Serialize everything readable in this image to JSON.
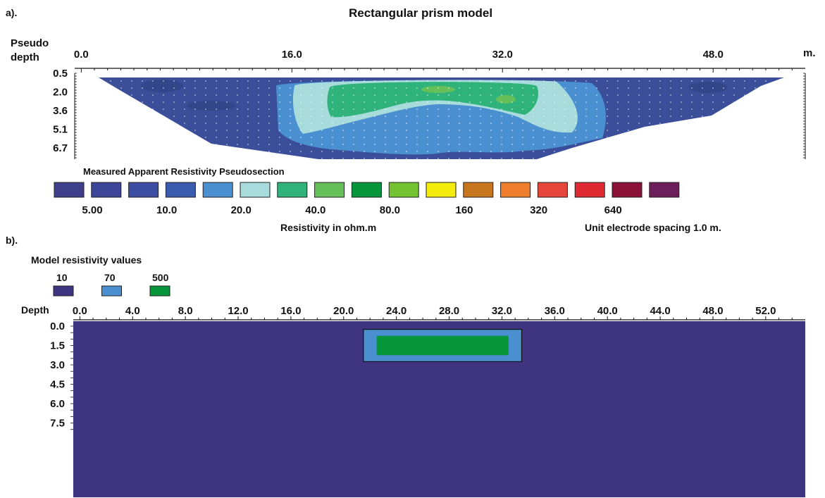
{
  "figure": {
    "title": "Rectangular prism model"
  },
  "panel_a": {
    "label": "a).",
    "y_axis_label_line1": "Pseudo",
    "y_axis_label_line2": "depth",
    "x_unit": "m.",
    "x_ticks": [
      "0.0",
      "16.0",
      "32.0",
      "48.0"
    ],
    "x_tick_values": [
      0,
      16,
      32,
      48
    ],
    "x_range": [
      -0.5,
      55
    ],
    "depth_ticks": [
      "0.5",
      "2.0",
      "3.6",
      "5.1",
      "6.7"
    ],
    "section_title": "Measured Apparent Resistivity Pseudosection",
    "legend_labels": [
      "5.00",
      "10.0",
      "20.0",
      "40.0",
      "80.0",
      "160",
      "320",
      "640"
    ],
    "colorbar": [
      "#3d3f8a",
      "#3d4598",
      "#3b4ea3",
      "#3a5aae",
      "#4a8fd0",
      "#a8dcdc",
      "#2fb37a",
      "#66c05a",
      "#08963c",
      "#72c232",
      "#f4ec0a",
      "#c8761e",
      "#ee7d2c",
      "#e6463a",
      "#e02a32",
      "#8a1238",
      "#6c1e5a"
    ],
    "unit_label": "Resistivity in ohm.m",
    "spacing_label": "Unit electrode spacing 1.0 m."
  },
  "panel_b": {
    "label": "b).",
    "legend_title": "Model resistivity values",
    "legend": [
      {
        "value": "10",
        "color": "#3f3480"
      },
      {
        "value": "70",
        "color": "#4a8fd0"
      },
      {
        "value": "500",
        "color": "#08963c"
      }
    ],
    "depth_label": "Depth",
    "x_ticks": [
      "0.0",
      "4.0",
      "8.0",
      "12.0",
      "16.0",
      "20.0",
      "24.0",
      "28.0",
      "32.0",
      "36.0",
      "40.0",
      "44.0",
      "48.0",
      "52.0"
    ],
    "x_tick_values": [
      0,
      4,
      8,
      12,
      16,
      20,
      24,
      28,
      32,
      36,
      40,
      44,
      48,
      52
    ],
    "x_range": [
      -0.5,
      55
    ],
    "depth_ticks": [
      "0.0",
      "1.5",
      "3.0",
      "4.5",
      "6.0",
      "7.5"
    ],
    "depth_tick_values": [
      0,
      1.5,
      3,
      4.5,
      6,
      7.5
    ],
    "prism_outer": {
      "x": [
        21.5,
        33.5
      ],
      "depth": [
        0.25,
        2.75
      ]
    },
    "prism_inner": {
      "x": [
        22.5,
        32.5
      ],
      "depth": [
        0.75,
        2.25
      ]
    }
  }
}
